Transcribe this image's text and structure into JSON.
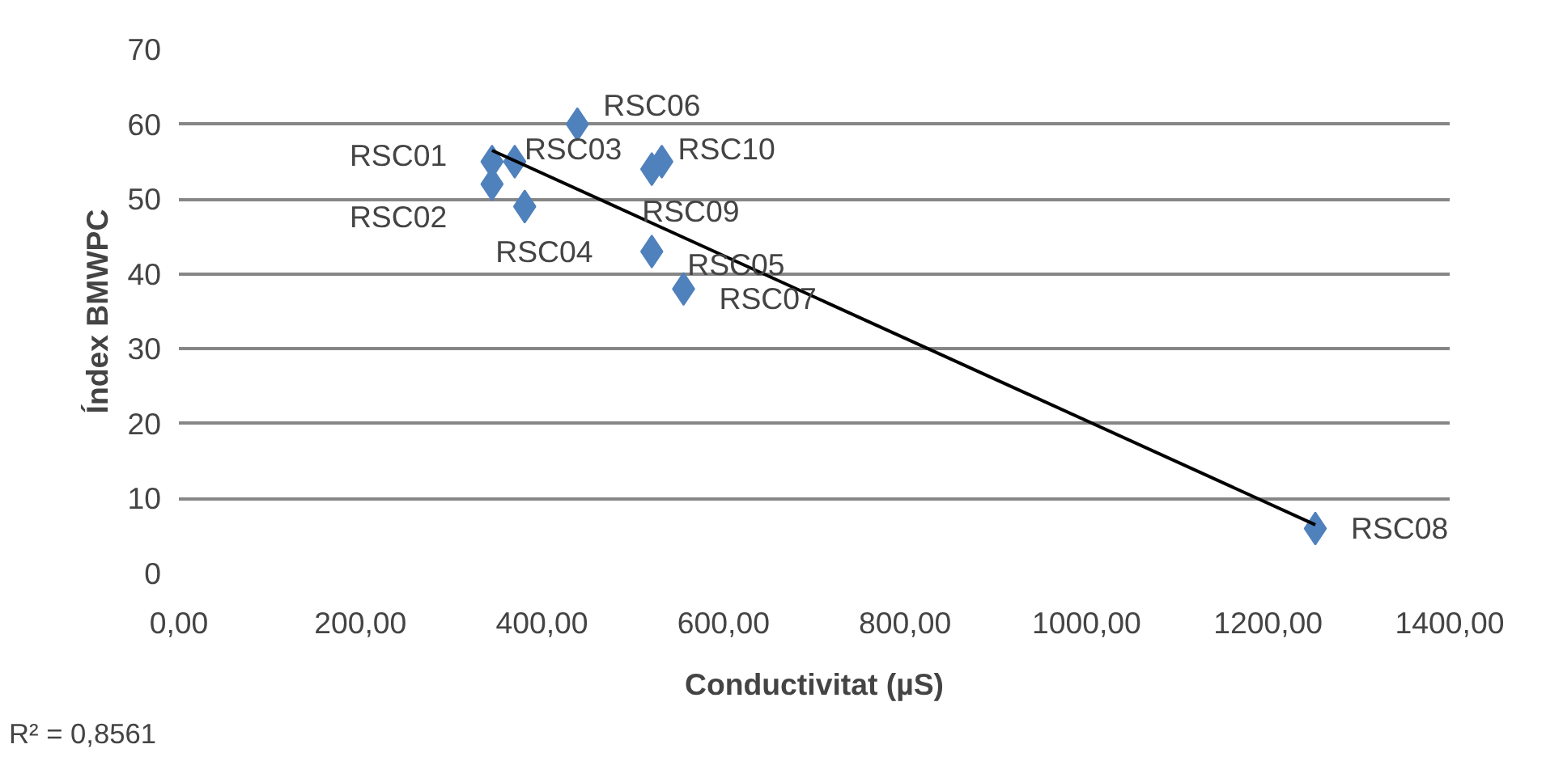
{
  "chart_data": {
    "type": "scatter",
    "xlabel": "Conductivitat (µS)",
    "ylabel": "Índex BMWPC",
    "xlim": [
      0,
      1400
    ],
    "xticks": [
      {
        "value": 0,
        "label": "0,00"
      },
      {
        "value": 200,
        "label": "200,00"
      },
      {
        "value": 400,
        "label": "400,00"
      },
      {
        "value": 600,
        "label": "600,00"
      },
      {
        "value": 800,
        "label": "800,00"
      },
      {
        "value": 1000,
        "label": "1000,00"
      },
      {
        "value": 1200,
        "label": "1200,00"
      },
      {
        "value": 1400,
        "label": "1400,00"
      }
    ],
    "ylim": [
      0,
      70
    ],
    "yticks": [
      0,
      10,
      20,
      30,
      40,
      50,
      60,
      70
    ],
    "grid": "y",
    "marker": "diamond",
    "series": [
      {
        "color": "#4f81bd",
        "x": [
          345,
          345,
          370,
          381,
          521,
          439,
          556,
          1252,
          521,
          532
        ],
        "values": [
          55,
          52,
          55,
          49,
          43,
          60,
          38,
          6,
          54,
          55
        ],
        "value_labels": [
          "RSC01",
          "RSC02",
          "RSC03",
          "RSC04",
          "RSC05",
          "RSC06",
          "RSC07",
          "RSC08",
          "RSC09",
          "RSC10"
        ]
      },
      {
        "type": "line",
        "marker": "none",
        "color": "#000000",
        "x": [
          345,
          1252
        ],
        "values": [
          56.5,
          6.5
        ]
      }
    ],
    "annotations": [
      "R² = 0,8561"
    ]
  }
}
